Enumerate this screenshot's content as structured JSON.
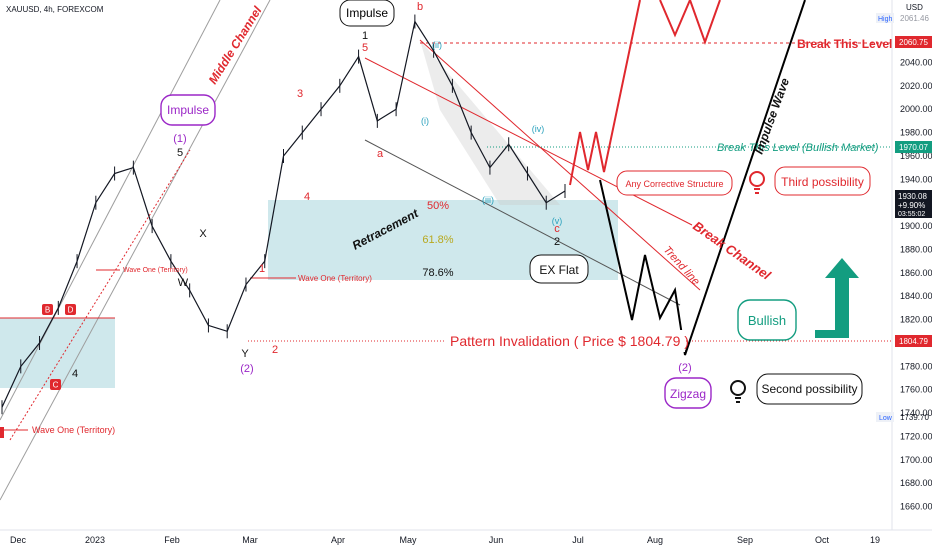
{
  "chart_data": {
    "type": "candlestick",
    "symbol_label": "XAUUSD, 4h, FOREXCOM",
    "currency": "USD",
    "ylim": [
      1640,
      2090
    ],
    "y_ticks": [
      1660,
      1680,
      1700,
      1720,
      1740,
      1760,
      1780,
      1800,
      1820,
      1840,
      1860,
      1880,
      1900,
      1920,
      1940,
      1960,
      1980,
      2000,
      2020,
      2040
    ],
    "y_tick_labels": [
      "1660.00",
      "1680.00",
      "1700.00",
      "1720.00",
      "1740.00",
      "1760.00",
      "1780.00",
      "1800.00",
      "1820.00",
      "1840.00",
      "1860.00",
      "1880.00",
      "1900.00",
      "1920.00",
      "1940.00",
      "1960.00",
      "1980.00",
      "2000.00",
      "2020.00",
      "2040.00"
    ],
    "x_labels": [
      "Dec",
      "2023",
      "Feb",
      "Mar",
      "Apr",
      "May",
      "Jun",
      "Jul",
      "Aug",
      "Sep",
      "Oct",
      "19"
    ],
    "price_line": [
      [
        "Dec",
        1745
      ],
      [
        "Dec",
        1780
      ],
      [
        "Dec",
        1800
      ],
      [
        "2023",
        1830
      ],
      [
        "2023",
        1870
      ],
      [
        "2023",
        1920
      ],
      [
        "2023",
        1945
      ],
      [
        "Feb",
        1950
      ],
      [
        "Feb",
        1900
      ],
      [
        "Feb",
        1870
      ],
      [
        "Feb",
        1845
      ],
      [
        "Mar",
        1815
      ],
      [
        "Mar",
        1810
      ],
      [
        "Mar",
        1850
      ],
      [
        "Mar",
        1870
      ],
      [
        "Mar",
        1960
      ],
      [
        "Mar",
        1980
      ],
      [
        "Apr",
        2000
      ],
      [
        "Apr",
        2020
      ],
      [
        "Apr",
        2045
      ],
      [
        "Apr",
        1990
      ],
      [
        "Apr",
        2000
      ],
      [
        "May",
        2075
      ],
      [
        "May",
        2050
      ],
      [
        "May",
        2020
      ],
      [
        "May",
        1980
      ],
      [
        "Jun",
        1950
      ],
      [
        "Jun",
        1970
      ],
      [
        "Jun",
        1945
      ],
      [
        "Jun",
        1920
      ],
      [
        "Jun",
        1930
      ]
    ],
    "badges": {
      "high_tag": "High",
      "high_val": "2061.46",
      "break_level": "2060.75",
      "bullish_level": "1970.07",
      "current_price": "1930.08",
      "change": "+9.90%",
      "countdown": "03:55:02",
      "invalidation": "1804.79",
      "low_tag": "Low",
      "low_val": "1739.70"
    },
    "annotations": {
      "impulse_top": "Impulse",
      "impulse_left": "Impulse",
      "wave_one_1": "(1)",
      "wave_5_black": "5",
      "middle_channel": "Middle Channel",
      "wave_x": "X",
      "wave_w": "W",
      "wave_y": "Y",
      "wave_2_purple": "(2)",
      "wave_2_red": "2",
      "wave_1_red": "1",
      "wave_3_red": "3",
      "wave_4_red": "4",
      "wave_1_black": "1",
      "wave_5_red": "5",
      "wave_b": "b",
      "wave_a": "a",
      "wave_ii": "(ii)",
      "wave_i": "(i)",
      "wave_iii": "(iii)",
      "wave_iv": "(iv)",
      "wave_v": "(v)",
      "wave_c": "c",
      "wave_2_black": "2",
      "retracement": "Retracement",
      "fib_50": "50%",
      "fib_618": "61.8%",
      "fib_786": "78.6%",
      "ex_flat": "EX Flat",
      "wave_one_territory_mid": "Wave One (Territory)",
      "wave_one_territory_right": "Wave One (Territory)",
      "wave_one_territory_bottom": "Wave One (Territory)",
      "wave_4_left": "4",
      "box_b": "B",
      "box_d": "D",
      "box_c": "C",
      "break_this_level": "Break This Level",
      "break_level_bullish": "Break This Level (Bullish Market)",
      "any_corrective": "Any Corrective Structure",
      "third_possibility": "Third possibility",
      "break_channel": "Break Channel",
      "trend_line": "Trend line",
      "impulse_wave": "Impulse Wave",
      "bullish": "Bullish",
      "pattern_invalidation": "Pattern Invalidation ( Price $ 1804.79 )",
      "wave_2_zigzag": "(2)",
      "zigzag": "Zigzag",
      "second_possibility": "Second possibility"
    },
    "colors": {
      "red": "#e0282e",
      "green_teal": "#139d80",
      "purple": "#9b27c7",
      "blue_box": "#a8d5dd",
      "cyan_text": "#2aa1bd"
    }
  }
}
